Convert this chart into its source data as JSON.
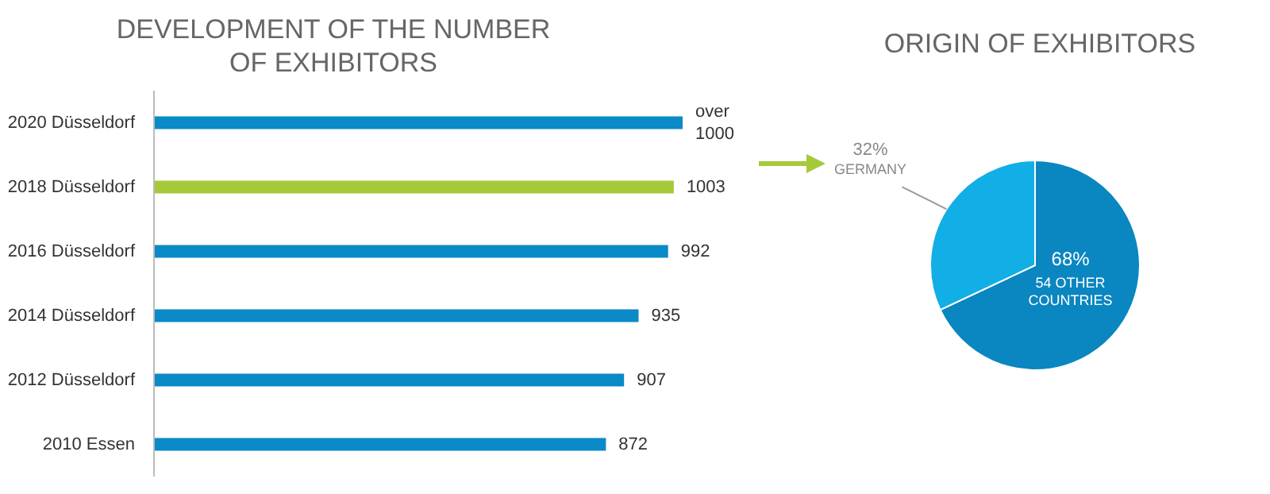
{
  "chart_data": [
    {
      "type": "bar",
      "title": "DEVELOPMENT OF THE NUMBER OF EXHIBITORS",
      "orientation": "horizontal",
      "categories": [
        "2020 Düsseldorf",
        "2018 Düsseldorf",
        "2016 Düsseldorf",
        "2014 Düsseldorf",
        "2012 Düsseldorf",
        "2010 Essen"
      ],
      "values": [
        1020,
        1003,
        992,
        935,
        907,
        872
      ],
      "colors": [
        "#0a8ac6",
        "#a6c93a",
        "#0a8ac6",
        "#0a8ac6",
        "#0a8ac6",
        "#0a8ac6"
      ],
      "value_labels": [
        "over 1000",
        "1003",
        "992",
        "935",
        "907",
        "872"
      ],
      "tick_labels": "y"
    },
    {
      "type": "pie",
      "title": "ORIGIN OF EXHIBITORS",
      "categories": [
        "54 OTHER COUNTRIES",
        "GERMANY"
      ],
      "values": [
        68,
        32
      ],
      "colors": [
        "#0a86c0",
        "#12aee6"
      ],
      "value_labels": [
        "68%",
        "32%"
      ]
    }
  ]
}
